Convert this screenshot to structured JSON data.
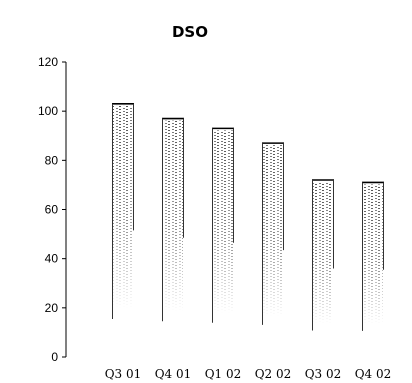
{
  "chart_data": {
    "type": "bar",
    "title": "DSO",
    "xlabel": "",
    "ylabel": "",
    "ylim": [
      0,
      120
    ],
    "yticks": [
      0,
      20,
      40,
      60,
      80,
      100,
      120
    ],
    "grid": false,
    "legend": "none",
    "categories": [
      "Q3 01",
      "Q4 01",
      "Q1 02",
      "Q2 02",
      "Q3 02",
      "Q4 02"
    ],
    "values": [
      103,
      97,
      93,
      87,
      72,
      71
    ],
    "colors": {
      "edge": "#000000",
      "shade": "#555555",
      "fill": "#ffffff"
    }
  }
}
